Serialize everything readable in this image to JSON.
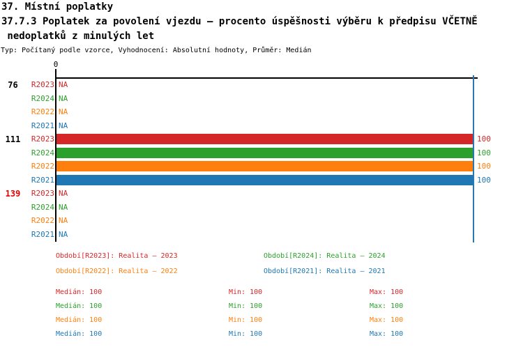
{
  "header": {
    "title": "37. Místní poplatky",
    "subtitle_line1": "37.7.3 Poplatek za povolení vjezdu – procento úspěšnosti výběru k předpisu VČETNĚ",
    "subtitle_line2": " nedoplatků z minulých let",
    "meta": "Typ: Počítaný podle vzorce, Vyhodnocení: Absolutní hodnoty, Průměr: Medián"
  },
  "colors": {
    "axis": "#000000",
    "reference_line": "#2878b4",
    "alert_group_label": "#e60000"
  },
  "chart_data": {
    "type": "bar",
    "orientation": "horizontal",
    "grid": false,
    "x_axis": {
      "tick_labels": [
        "0"
      ],
      "range": [
        0,
        100
      ]
    },
    "reference_line_x": 100,
    "series": [
      {
        "name": "R2023",
        "color": "#d62728"
      },
      {
        "name": "R2024",
        "color": "#2ca02c"
      },
      {
        "name": "R2022",
        "color": "#ff7f0e"
      },
      {
        "name": "R2021",
        "color": "#1f77b4"
      }
    ],
    "groups": [
      {
        "label": "76",
        "label_color": "#000000",
        "rows": [
          {
            "series": "R2023",
            "value": null,
            "display": "NA"
          },
          {
            "series": "R2024",
            "value": null,
            "display": "NA"
          },
          {
            "series": "R2022",
            "value": null,
            "display": "NA"
          },
          {
            "series": "R2021",
            "value": null,
            "display": "NA"
          }
        ]
      },
      {
        "label": "111",
        "label_color": "#000000",
        "rows": [
          {
            "series": "R2023",
            "value": 100,
            "display": "100"
          },
          {
            "series": "R2024",
            "value": 100,
            "display": "100"
          },
          {
            "series": "R2022",
            "value": 100,
            "display": "100"
          },
          {
            "series": "R2021",
            "value": 100,
            "display": "100"
          }
        ]
      },
      {
        "label": "139",
        "label_color": "#e60000",
        "rows": [
          {
            "series": "R2023",
            "value": null,
            "display": "NA"
          },
          {
            "series": "R2024",
            "value": null,
            "display": "NA"
          },
          {
            "series": "R2022",
            "value": null,
            "display": "NA"
          },
          {
            "series": "R2021",
            "value": null,
            "display": "NA"
          }
        ]
      }
    ]
  },
  "legend": {
    "items": [
      {
        "label": "Období[R2023]: Realita – 2023",
        "color": "#d62728"
      },
      {
        "label": "Období[R2024]: Realita – 2024",
        "color": "#2ca02c"
      },
      {
        "label": "Období[R2022]: Realita – 2022",
        "color": "#ff7f0e"
      },
      {
        "label": "Období[R2021]: Realita – 2021",
        "color": "#1f77b4"
      }
    ]
  },
  "stats": {
    "labels": {
      "median": "Medián",
      "min": "Min",
      "max": "Max"
    },
    "rows": [
      {
        "series": "R2023",
        "color": "#d62728",
        "median": "100",
        "min": "100",
        "max": "100"
      },
      {
        "series": "R2024",
        "color": "#2ca02c",
        "median": "100",
        "min": "100",
        "max": "100"
      },
      {
        "series": "R2022",
        "color": "#ff7f0e",
        "median": "100",
        "min": "100",
        "max": "100"
      },
      {
        "series": "R2021",
        "color": "#1f77b4",
        "median": "100",
        "min": "100",
        "max": "100"
      }
    ]
  }
}
